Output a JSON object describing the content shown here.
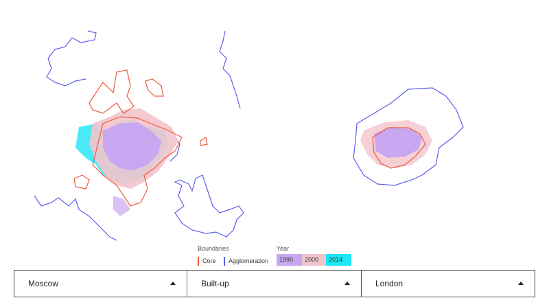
{
  "legend": {
    "boundaries_title": "Boundaries",
    "boundaries": [
      "Core",
      "Agglomeration"
    ],
    "year_title": "Year",
    "years": [
      "1990",
      "2000",
      "2014"
    ]
  },
  "selectors": [
    "Moscow",
    "Built-up",
    "London"
  ]
}
